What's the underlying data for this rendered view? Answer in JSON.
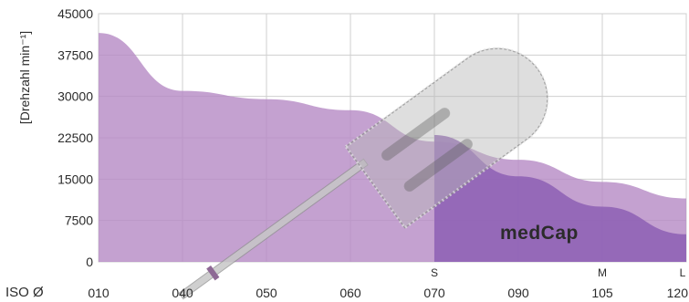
{
  "chart_data": {
    "type": "area",
    "ylabel": "[Drehzahl min⁻¹]",
    "xlabel": "ISO Ø",
    "categories": [
      "010",
      "040",
      "050",
      "060",
      "070",
      "090",
      "105",
      "120"
    ],
    "size_marks": [
      {
        "label": "S",
        "at": "070"
      },
      {
        "label": "M",
        "at": "105"
      },
      {
        "label": "L",
        "at": "120"
      }
    ],
    "y_ticks": [
      0,
      7500,
      15000,
      22500,
      30000,
      37500,
      45000
    ],
    "ylim": [
      0,
      45000
    ],
    "grid": true,
    "series": [
      {
        "name": "",
        "color": "#b58ac4",
        "points": [
          {
            "x": "010",
            "y": 41500
          },
          {
            "x": "040",
            "y": 31000
          },
          {
            "x": "050",
            "y": 29500
          },
          {
            "x": "060",
            "y": 27500
          },
          {
            "x": "070",
            "y": 21800
          },
          {
            "x": "090",
            "y": 18500
          },
          {
            "x": "105",
            "y": 14500
          },
          {
            "x": "120",
            "y": 11500
          }
        ]
      },
      {
        "name": "medCap",
        "color": "#9063b5",
        "points": [
          {
            "x": "070",
            "y": 23000
          },
          {
            "x": "090",
            "y": 15500
          },
          {
            "x": "105",
            "y": 10000
          },
          {
            "x": "120",
            "y": 5000
          }
        ]
      }
    ]
  }
}
